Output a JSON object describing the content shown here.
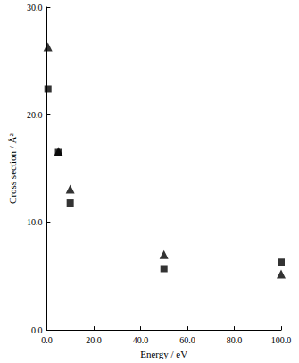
{
  "chart_data": {
    "type": "scatter",
    "x_label": "Energy / eV",
    "y_label": "Cross section / Å²",
    "xlim": [
      0,
      100
    ],
    "xticks": [
      {
        "value": 0,
        "label": "0.0"
      },
      {
        "value": 20,
        "label": "20.0"
      },
      {
        "value": 40,
        "label": "40.0"
      },
      {
        "value": 60,
        "label": "60.0"
      },
      {
        "value": 80,
        "label": "80.0"
      },
      {
        "value": 100,
        "label": "100.0"
      }
    ],
    "ylim": [
      0,
      30
    ],
    "yticks": [
      {
        "value": 0,
        "label": "0.0"
      },
      {
        "value": 10,
        "label": "10.0"
      },
      {
        "value": 20,
        "label": "20.0"
      },
      {
        "value": 30,
        "label": "30.0"
      }
    ],
    "grid": false,
    "series": [
      {
        "color": "#000000",
        "marker": "triangle",
        "x": [
          0.5,
          5,
          10,
          50,
          100
        ],
        "values": [
          26.3,
          16.6,
          13.1,
          7.0,
          5.2
        ]
      },
      {
        "color": "#000000",
        "marker": "square",
        "x": [
          0.5,
          5,
          10,
          50,
          100
        ],
        "values": [
          22.4,
          16.5,
          11.8,
          5.7,
          6.3
        ]
      }
    ]
  }
}
